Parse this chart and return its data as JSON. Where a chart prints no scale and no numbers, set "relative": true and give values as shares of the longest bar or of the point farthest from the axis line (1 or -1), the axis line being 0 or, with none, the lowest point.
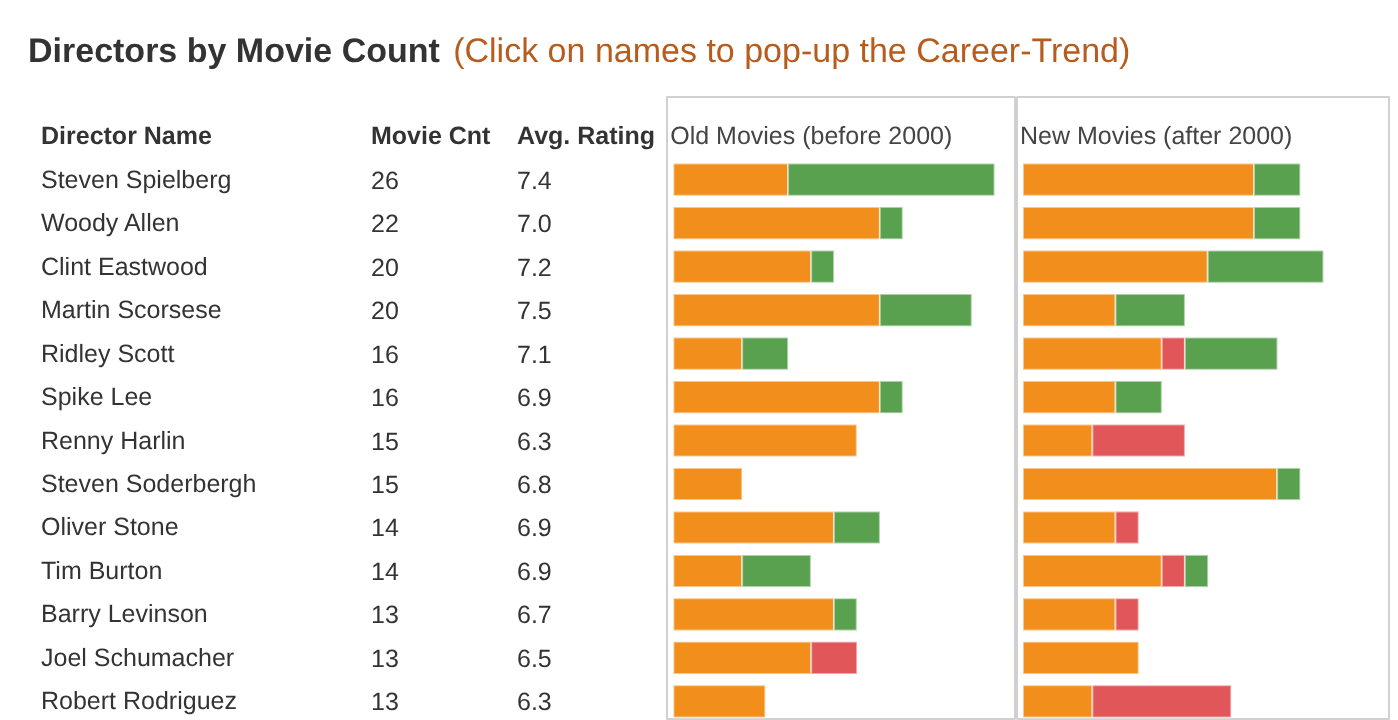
{
  "chart_data": [
    {
      "type": "other",
      "title": "Directors by Movie Count",
      "subtitle": "(Click on names to pop-up the Career-Trend)",
      "xlabel": "Director Name",
      "categories": [
        "Steven Spielberg",
        "Woody Allen",
        "Clint Eastwood",
        "Martin Scorsese",
        "Ridley Scott",
        "Spike Lee",
        "Renny Harlin",
        "Steven Soderbergh",
        "Oliver Stone",
        "Tim Burton",
        "Barry Levinson",
        "Joel Schumacher",
        "Robert Rodriguez"
      ],
      "series": [
        {
          "name": "Movie Cnt",
          "values": [
            26,
            22,
            20,
            20,
            16,
            16,
            15,
            15,
            14,
            14,
            13,
            13,
            13
          ]
        },
        {
          "name": "Avg. Rating",
          "values": [
            7.4,
            7.0,
            7.2,
            7.5,
            7.1,
            6.9,
            6.3,
            6.8,
            6.9,
            6.9,
            6.7,
            6.5,
            6.3
          ],
          "value_labels": [
            "7.4",
            "7.0",
            "7.2",
            "7.5",
            "7.1",
            "6.9",
            "6.3",
            "6.8",
            "6.9",
            "6.9",
            "6.7",
            "6.5",
            "6.3"
          ]
        }
      ],
      "data_labels": true
    },
    {
      "type": "bar",
      "orientation": "horizontal",
      "stacked": true,
      "relative": true,
      "title": "Old Movies (before 2000)",
      "categories": [
        null,
        null,
        null,
        null,
        null,
        null,
        null,
        null,
        null,
        null,
        null,
        null,
        null
      ],
      "series": [
        {
          "color": "#f28e1c",
          "values": [
            0.357,
            0.643,
            0.429,
            0.643,
            0.214,
            0.643,
            0.571,
            0.214,
            0.5,
            0.214,
            0.5,
            0.429,
            0.286
          ]
        },
        {
          "color": "#e15759",
          "values": [
            null,
            null,
            null,
            null,
            null,
            null,
            null,
            null,
            null,
            null,
            null,
            0.143,
            null
          ]
        },
        {
          "color": "#59a14f",
          "values": [
            0.643,
            0.071,
            0.071,
            0.286,
            0.143,
            0.071,
            null,
            null,
            0.143,
            0.214,
            0.071,
            null,
            null
          ]
        }
      ]
    },
    {
      "type": "bar",
      "orientation": "horizontal",
      "stacked": true,
      "relative": true,
      "title": "New Movies (after 2000)",
      "categories": [
        null,
        null,
        null,
        null,
        null,
        null,
        null,
        null,
        null,
        null,
        null,
        null,
        null
      ],
      "series": [
        {
          "color": "#f28e1c",
          "values": [
            0.769,
            0.769,
            0.615,
            0.308,
            0.462,
            0.308,
            0.231,
            0.846,
            0.308,
            0.462,
            0.308,
            0.385,
            0.231
          ]
        },
        {
          "color": "#e15759",
          "values": [
            null,
            null,
            null,
            null,
            0.077,
            null,
            0.308,
            null,
            0.077,
            0.077,
            0.077,
            null,
            0.462
          ]
        },
        {
          "color": "#59a14f",
          "values": [
            0.154,
            0.154,
            0.385,
            0.231,
            0.308,
            0.154,
            null,
            0.077,
            null,
            0.077,
            null,
            null,
            null
          ]
        }
      ]
    }
  ]
}
